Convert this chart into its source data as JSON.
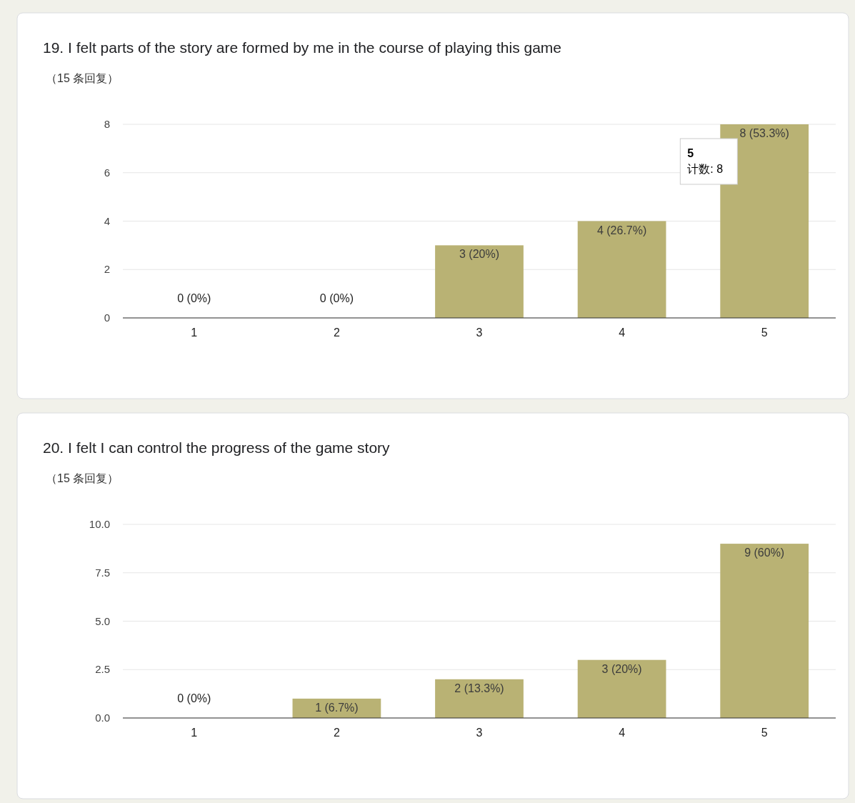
{
  "chart_data": [
    {
      "type": "bar",
      "title": "19. I felt parts of the story are formed by me in the course of playing this game",
      "subtitle": "（15 条回复）",
      "categories": [
        "1",
        "2",
        "3",
        "4",
        "5"
      ],
      "values": [
        0,
        0,
        3,
        4,
        8
      ],
      "value_labels": [
        "0 (0%)",
        "0 (0%)",
        "3 (20%)",
        "4 (26.7%)",
        "8 (53.3%)"
      ],
      "color": "#b9b274",
      "ylim": [
        0,
        8
      ],
      "yticks": [
        0,
        2,
        4,
        6,
        8
      ],
      "grid": "y",
      "annotations": [
        "5\n计数: 8"
      ]
    },
    {
      "type": "bar",
      "title": "20. I felt I can control the progress of the game story",
      "subtitle": "（15 条回复）",
      "categories": [
        "1",
        "2",
        "3",
        "4",
        "5"
      ],
      "values": [
        0,
        1,
        2,
        3,
        9
      ],
      "value_labels": [
        "0 (0%)",
        "1 (6.7%)",
        "2 (13.3%)",
        "3 (20%)",
        "9 (60%)"
      ],
      "color": "#b9b274",
      "ylim": [
        0,
        10
      ],
      "yticks": [
        {
          "value": 0,
          "label": "0.0"
        },
        {
          "value": 2.5,
          "label": "2.5"
        },
        {
          "value": 5,
          "label": "5.0"
        },
        {
          "value": 7.5,
          "label": "7.5"
        },
        {
          "value": 10,
          "label": "10.0"
        }
      ],
      "grid": "y"
    }
  ]
}
